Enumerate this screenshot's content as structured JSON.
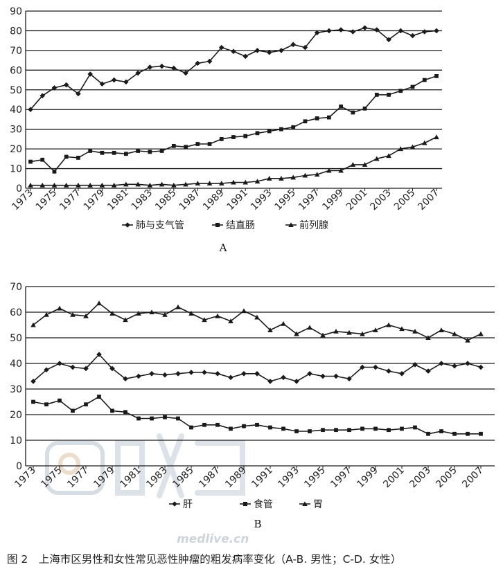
{
  "chart_data": [
    {
      "panel_label": "A",
      "type": "line",
      "x_start_year": 1973,
      "x_ticks": [
        "1973",
        "1975",
        "1977",
        "1979",
        "1981",
        "1983",
        "1985",
        "1987",
        "1989",
        "1991",
        "1993",
        "1995",
        "1997",
        "1999",
        "2001",
        "2003",
        "2005",
        "2007"
      ],
      "ylim": [
        0,
        90
      ],
      "yticks": [
        0,
        10,
        20,
        30,
        40,
        50,
        60,
        70,
        80,
        90
      ],
      "grid": true,
      "legend_position": "bottom",
      "series": [
        {
          "name": "肺与支气管",
          "marker": "diamond",
          "values": [
            40,
            47,
            51,
            52.5,
            48,
            58,
            53,
            55,
            54,
            58.5,
            61.5,
            62,
            61,
            58.5,
            63.5,
            64.5,
            71.5,
            69.5,
            67,
            70,
            69,
            70,
            73,
            71.5,
            79,
            80,
            80.5,
            79.5,
            81.5,
            80.5,
            75.5,
            80,
            77.5,
            79.5,
            80
          ]
        },
        {
          "name": "结直肠",
          "marker": "square",
          "values": [
            13.5,
            14.5,
            8.5,
            16,
            15.5,
            19,
            18,
            18,
            17.5,
            19,
            18.5,
            19,
            21.5,
            21,
            22.5,
            22.5,
            25,
            26,
            26.5,
            28,
            29,
            30,
            31,
            34,
            35.5,
            36,
            41.5,
            38.5,
            40.5,
            47.5,
            47.5,
            49.5,
            51.5,
            55,
            57
          ]
        },
        {
          "name": "前列腺",
          "marker": "triangle",
          "values": [
            1.5,
            1.5,
            1.5,
            1.5,
            1.5,
            1.5,
            1.5,
            1.5,
            2,
            2,
            1.5,
            2,
            1.5,
            2,
            2.5,
            2.5,
            2.5,
            3,
            3,
            3.5,
            5,
            5,
            5.5,
            6.5,
            7,
            9,
            9,
            12,
            12,
            15,
            16.5,
            20,
            21,
            23,
            26
          ]
        }
      ]
    },
    {
      "panel_label": "B",
      "type": "line",
      "x_start_year": 1973,
      "x_ticks": [
        "1973",
        "1975",
        "1977",
        "1979",
        "1981",
        "1983",
        "1985",
        "1987",
        "1989",
        "1991",
        "1993",
        "1995",
        "1997",
        "1999",
        "2001",
        "2003",
        "2005",
        "2007"
      ],
      "ylim": [
        0,
        70
      ],
      "yticks": [
        0,
        10,
        20,
        30,
        40,
        50,
        60,
        70
      ],
      "grid": true,
      "legend_position": "bottom",
      "series": [
        {
          "name": "肝",
          "marker": "diamond",
          "values": [
            33,
            37.5,
            40,
            38.5,
            38,
            43.5,
            38,
            34,
            35,
            36,
            35.5,
            36,
            36.5,
            36.5,
            36,
            34.5,
            36,
            36,
            33,
            34.5,
            33,
            36,
            35,
            35,
            34,
            38.5,
            38.5,
            37,
            36,
            39.5,
            37,
            40,
            39,
            40,
            38.5
          ]
        },
        {
          "name": "食管",
          "marker": "square",
          "values": [
            25,
            24,
            25.5,
            21.5,
            24,
            27,
            21.5,
            21,
            18.5,
            18.5,
            19,
            18.5,
            15,
            16,
            16,
            14.5,
            15.5,
            16,
            15,
            14.5,
            13.5,
            13.5,
            14,
            14,
            14,
            14.5,
            14.5,
            14,
            14.5,
            15,
            12.5,
            13.5,
            12.5,
            12.5,
            12.5
          ]
        },
        {
          "name": "胃",
          "marker": "triangle",
          "values": [
            55,
            59,
            61.5,
            59,
            58.5,
            63.5,
            59.5,
            57,
            59.5,
            60,
            59,
            62,
            59.5,
            57,
            58.5,
            56.5,
            60.5,
            58,
            53,
            55.5,
            51.5,
            54,
            51,
            52.5,
            52,
            51.5,
            53,
            55,
            53.5,
            52.5,
            50,
            53,
            51.5,
            49,
            51.5
          ]
        }
      ]
    }
  ],
  "watermark": {
    "brand": "医脉通",
    "url": "medlive.cn"
  },
  "caption": "图 2　上海市区男性和女性常见恶性肿瘤的粗发病率变化（A-B. 男性；C-D. 女性）",
  "colors": {
    "line": "#1a1a1a",
    "grid": "#1a1a1a",
    "watermark": "#cfd7de"
  }
}
